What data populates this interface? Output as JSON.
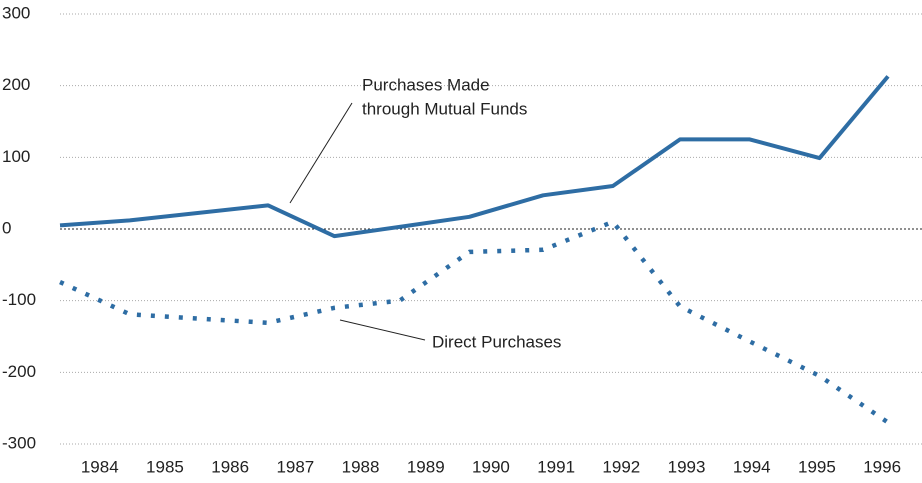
{
  "chart_data": {
    "type": "line",
    "x": [
      1983.39,
      1984.46,
      1986.58,
      1987.6,
      1988.6,
      1989.67,
      1990.8,
      1991.87,
      1992.9,
      1993.97,
      1995.04,
      1996.09
    ],
    "series": [
      {
        "name": "Purchases Made through Mutual Funds",
        "color": "#2e6da4",
        "style": "solid",
        "values": [
          5,
          12,
          33,
          -10,
          3,
          17,
          47,
          60,
          125,
          125,
          99,
          213
        ]
      },
      {
        "name": "Direct Purchases",
        "color": "#2e6da4",
        "style": "dotted",
        "values": [
          -74,
          -119,
          -131,
          -110,
          -100,
          -32,
          -29,
          10,
          -108,
          -157,
          -205,
          -270
        ]
      }
    ],
    "annotations": [
      {
        "lines": [
          "Purchases Made",
          "through Mutual Funds"
        ]
      },
      {
        "lines": [
          "Direct Purchases"
        ]
      }
    ],
    "xlim": [
      1983.39,
      1996.09
    ],
    "xticks": [
      1984,
      1985,
      1986,
      1987,
      1988,
      1989,
      1990,
      1991,
      1992,
      1993,
      1994,
      1995,
      1996
    ],
    "ylim": [
      -300,
      300
    ],
    "yticks": [
      -300,
      -200,
      -100,
      0,
      100,
      200,
      300
    ],
    "grid": true
  }
}
